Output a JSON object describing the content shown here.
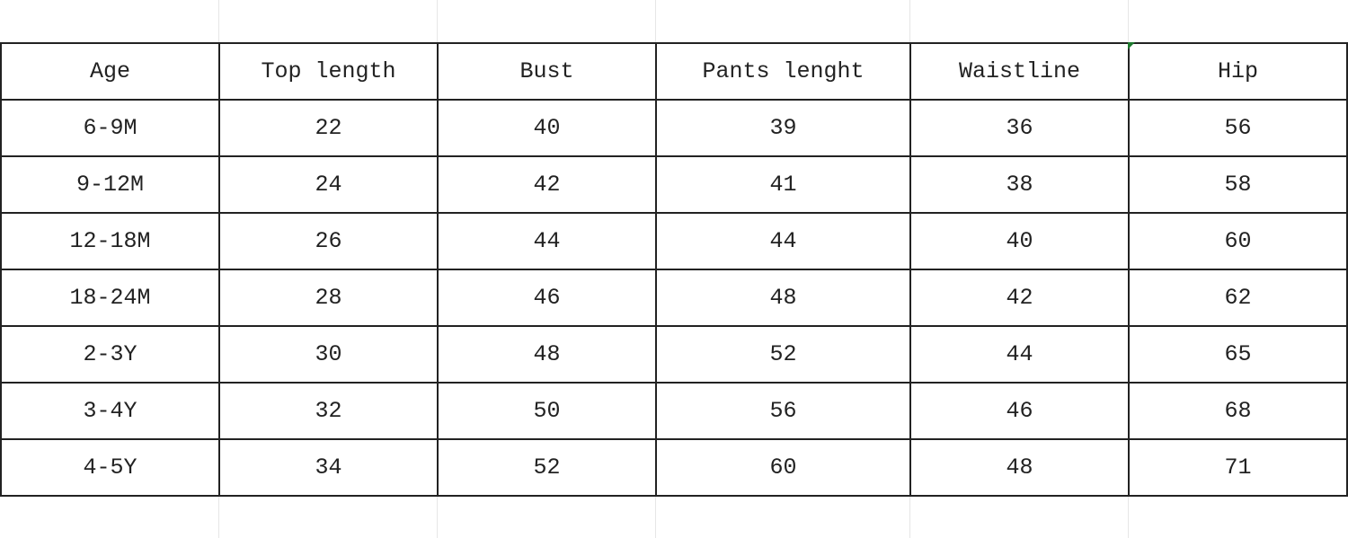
{
  "sheet": {
    "headers": [
      "Age",
      "Top length",
      "Bust",
      "Pants lenght",
      "Waistline",
      "Hip"
    ],
    "rows": [
      [
        "6-9M",
        "22",
        "40",
        "39",
        "36",
        "56"
      ],
      [
        "9-12M",
        "24",
        "42",
        "41",
        "38",
        "58"
      ],
      [
        "12-18M",
        "26",
        "44",
        "44",
        "40",
        "60"
      ],
      [
        "18-24M",
        "28",
        "46",
        "48",
        "42",
        "62"
      ],
      [
        "2-3Y",
        "30",
        "48",
        "52",
        "44",
        "65"
      ],
      [
        "3-4Y",
        "32",
        "50",
        "56",
        "46",
        "68"
      ],
      [
        "4-5Y",
        "34",
        "52",
        "60",
        "48",
        "71"
      ]
    ],
    "selection_color": "#1e7a2e"
  }
}
